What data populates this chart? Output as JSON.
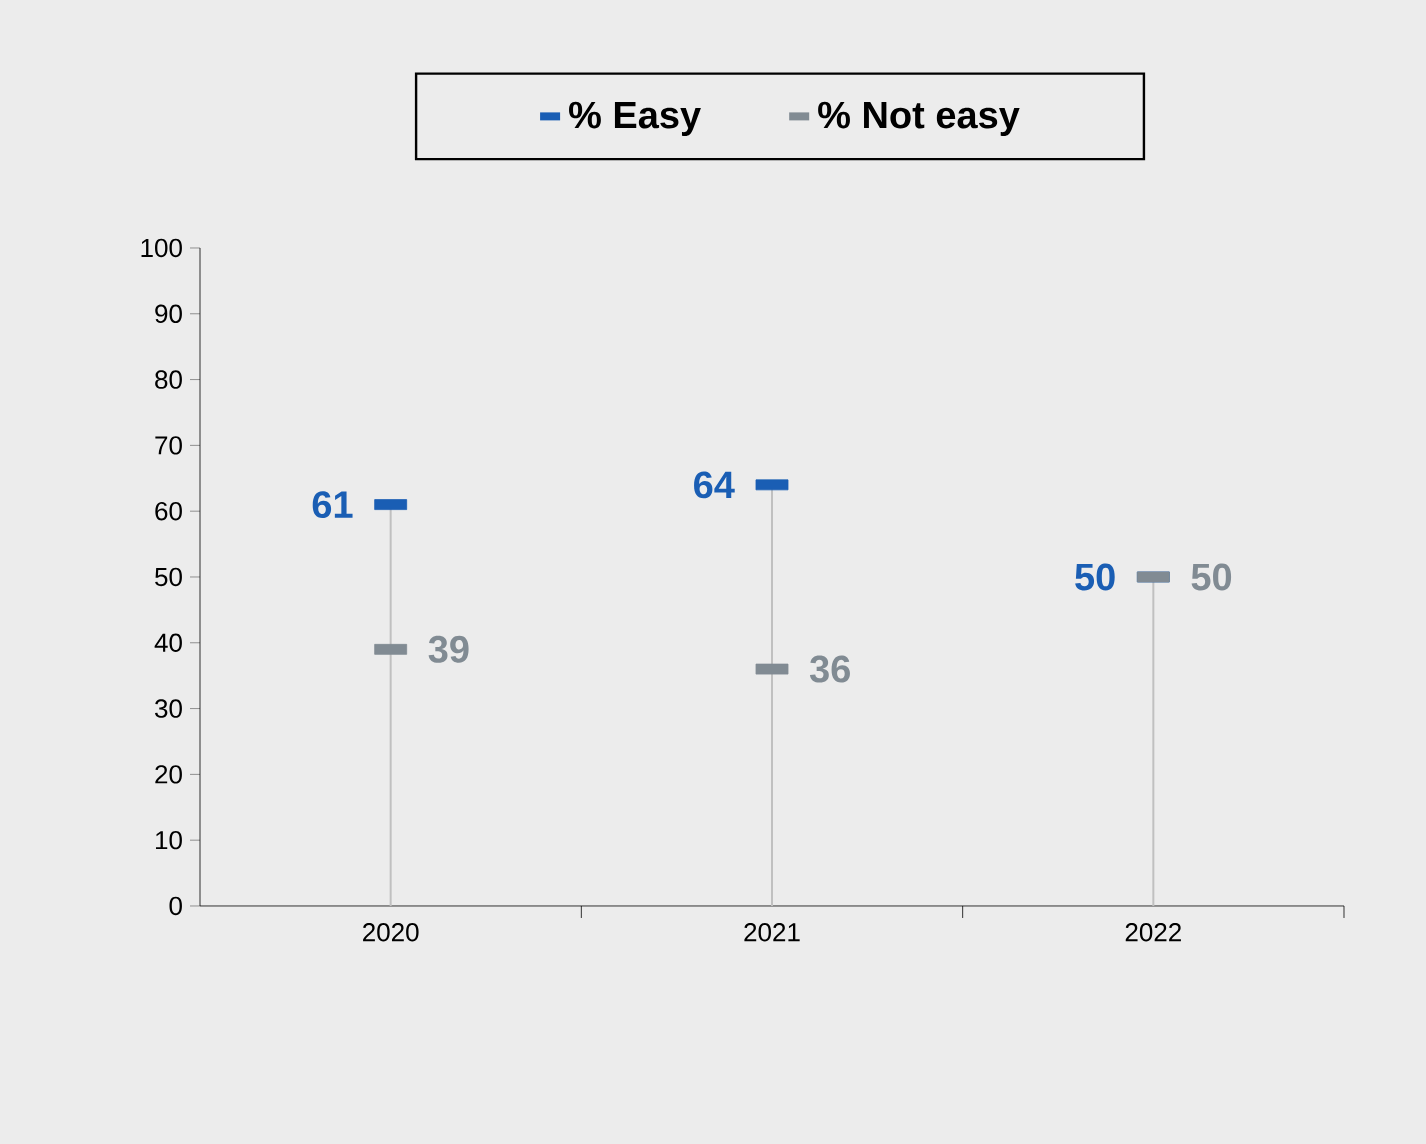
{
  "chart_data": {
    "type": "lollipop",
    "categories": [
      "2020",
      "2021",
      "2022"
    ],
    "series": [
      {
        "name": "% Easy",
        "color": "#1a5eb4",
        "values": [
          61,
          64,
          50
        ]
      },
      {
        "name": "% Not easy",
        "type": "scatter",
        "color": "#818b93",
        "values": [
          39,
          36,
          50
        ]
      }
    ],
    "ylim": [
      0,
      100
    ],
    "yticks": [
      0,
      10,
      20,
      30,
      40,
      50,
      60,
      70,
      80,
      90,
      100
    ],
    "data_labels": true,
    "legend": "top",
    "grid": false
  }
}
